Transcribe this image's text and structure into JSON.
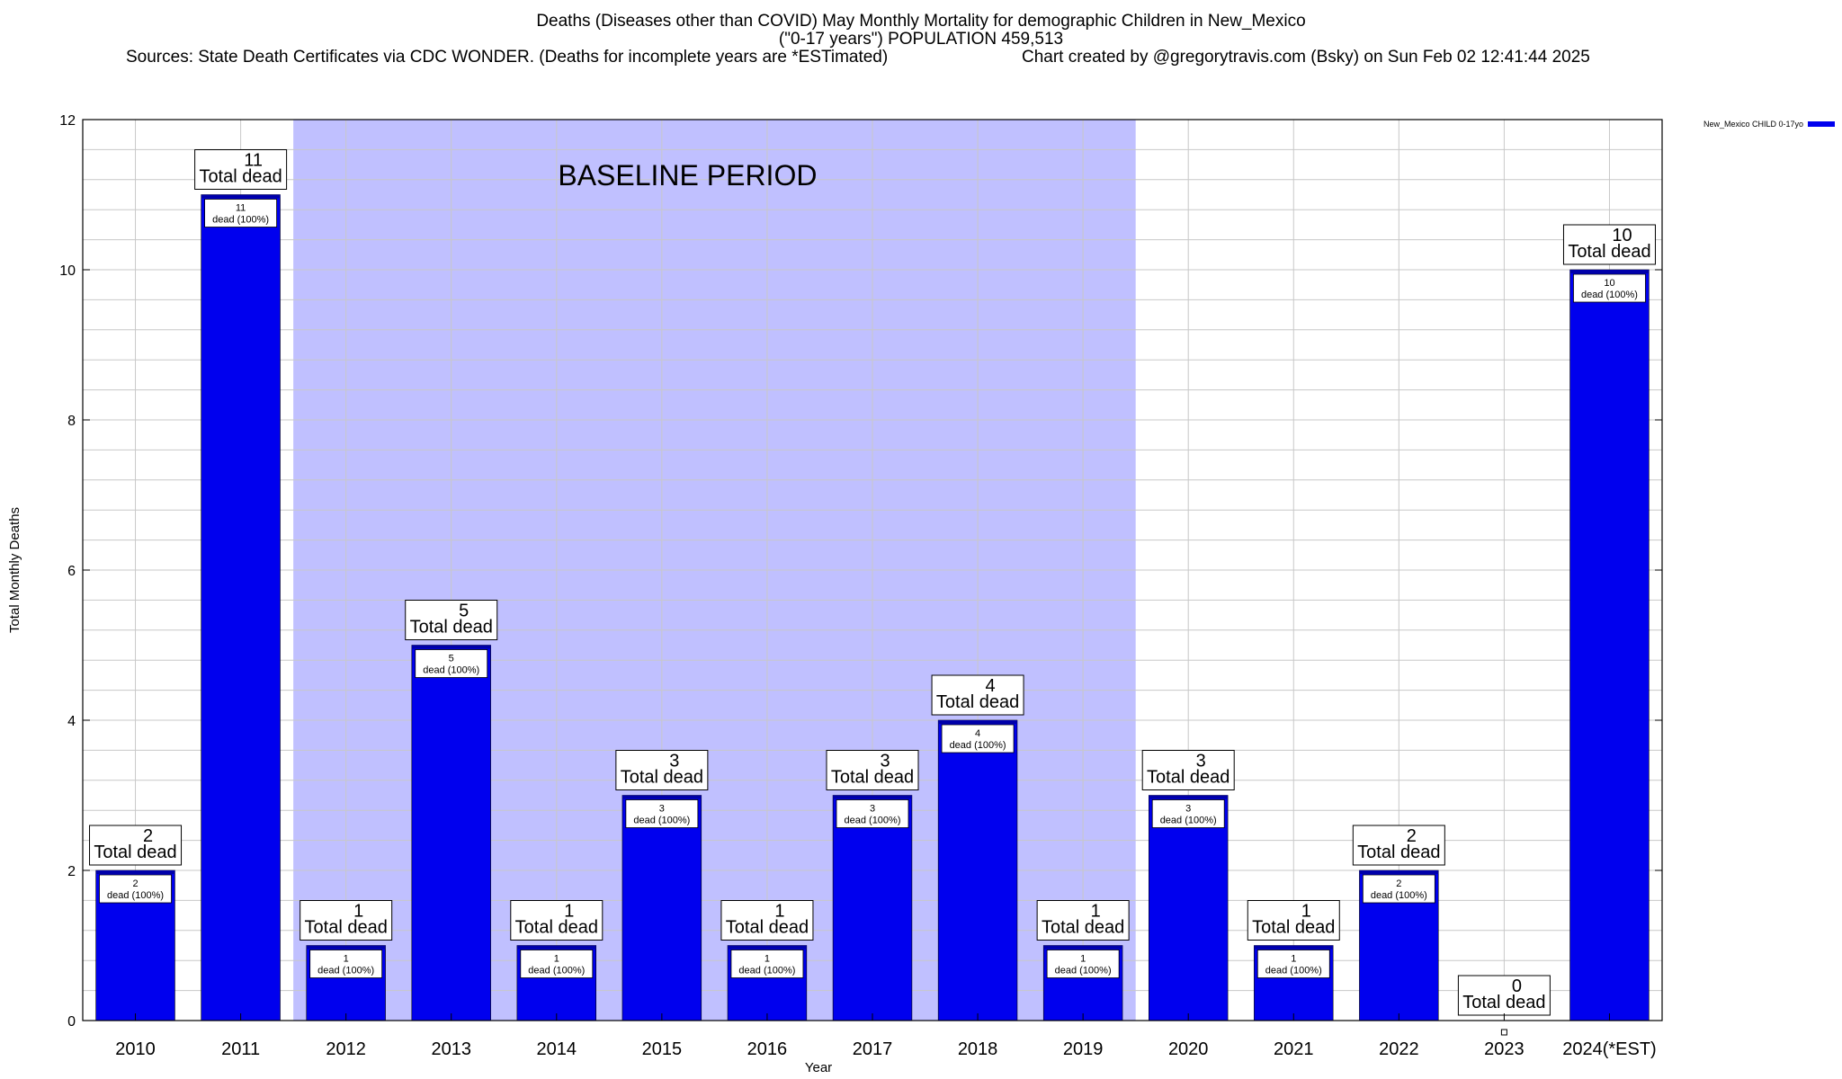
{
  "header": {
    "title": "Deaths (Diseases other than COVID) May Monthly Mortality for demographic Children in New_Mexico",
    "subtitle": "(\"0-17 years\") POPULATION 459,513",
    "sources": "Sources: State Death Certificates via CDC WONDER. (Deaths for incomplete years are *ESTimated)",
    "credit": "Chart created by @gregorytravis.com (Bsky) on Sun Feb 02 12:41:44 2025"
  },
  "chart_data": {
    "type": "bar",
    "categories": [
      "2010",
      "2011",
      "2012",
      "2013",
      "2014",
      "2015",
      "2016",
      "2017",
      "2018",
      "2019",
      "2020",
      "2021",
      "2022",
      "2023",
      "2024(*EST)"
    ],
    "series": [
      {
        "name": "New_Mexico CHILD 0-17yo",
        "values": [
          2,
          11,
          1,
          5,
          1,
          3,
          1,
          3,
          4,
          1,
          3,
          1,
          2,
          0,
          10
        ],
        "color": "#0000ee"
      }
    ],
    "total_label_suffix": "Total dead",
    "inner_label_suffix": "dead (100%)",
    "xlabel": "Year",
    "ylabel": "Total Monthly Deaths",
    "ylim": [
      0,
      12
    ],
    "yticks": [
      0,
      2,
      4,
      6,
      8,
      10,
      12
    ],
    "grid": true,
    "legend_position": "top-right",
    "baseline": {
      "label": "BASELINE PERIOD",
      "from": "2012",
      "to": "2019",
      "color": "#c0c0ff"
    },
    "colors": {
      "bar": "#0000ee",
      "bar_cap": "#0000aa",
      "shade": "#c0c0ff",
      "grid": "#c8c8c8"
    }
  }
}
